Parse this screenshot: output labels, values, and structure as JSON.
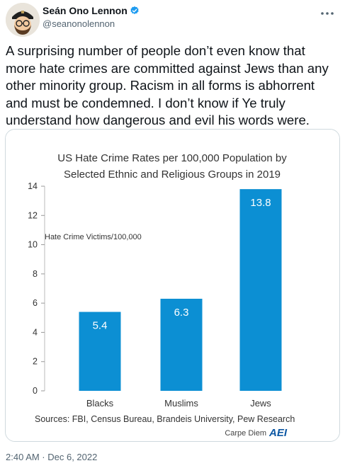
{
  "author": {
    "display_name": "Seán Ono Lennon",
    "handle": "@seanonolennon"
  },
  "icons": {
    "avatar": "cartoon-avatar",
    "verified": "verified-badge-icon",
    "more": "more-options-icon",
    "accent": "#1d9bf0"
  },
  "tweet": {
    "text": "A surprising number of people don’t even know that\nmore hate crimes are committed against Jews than any\nother minority group. Racism in all forms is abhorrent\nand must be condemned. I don’t know if Ye truly\nunderstand how dangerous and evil his words were.",
    "timestamp": "2:40 AM · Dec 6, 2022"
  },
  "chart_data": {
    "type": "bar",
    "title_lines": [
      "US Hate Crime Rates per 100,000 Population by",
      "Selected Ethnic and Religious Groups in 2019"
    ],
    "categories": [
      "Blacks",
      "Muslims",
      "Jews"
    ],
    "values": [
      5.4,
      6.3,
      13.8
    ],
    "value_labels": [
      "5.4",
      "6.3",
      "13.8"
    ],
    "ylabel": "Hate Crime Victims/100,000",
    "ylim": [
      0,
      14
    ],
    "yticks": [
      0,
      2,
      4,
      6,
      8,
      10,
      12,
      14
    ],
    "ytick_labels": [
      "0",
      "2",
      "4",
      "6",
      "8",
      "10",
      "12",
      "14"
    ],
    "bar_color": "#0c8fd3",
    "background_color": "#ffffff",
    "sources": "Sources: FBI, Census Bureau, Brandeis University, Pew Research",
    "credit": "Carpe Diem",
    "logo_text": "AEI",
    "grid": false,
    "legend": "none"
  }
}
